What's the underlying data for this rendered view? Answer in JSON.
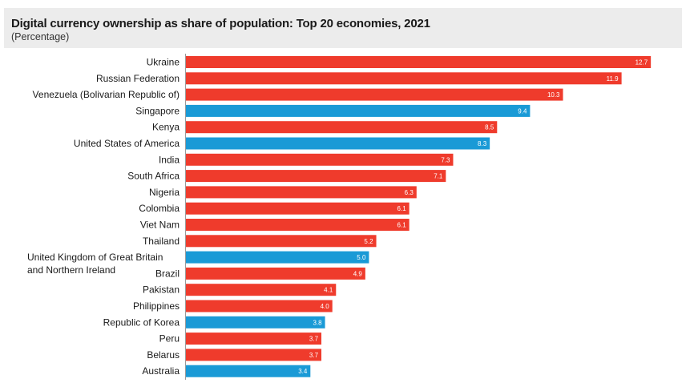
{
  "header": {
    "title": "Digital currency ownership as share of population: Top 20 economies, 2021",
    "subtitle": "(Percentage)"
  },
  "colors": {
    "red": "#ef3b2c",
    "blue": "#1a9ad6",
    "title_band": "#ececec"
  },
  "chart_data": {
    "type": "bar",
    "orientation": "horizontal",
    "title": "Digital currency ownership as share of population: Top 20 economies, 2021",
    "subtitle": "(Percentage)",
    "xlim": [
      0,
      13.2
    ],
    "grid": false,
    "legend": "none",
    "categories": [
      "Ukraine",
      "Russian Federation",
      "Venezuela (Bolivarian Republic of)",
      "Singapore",
      "Kenya",
      "United States of America",
      "India",
      "South Africa",
      "Nigeria",
      "Colombia",
      "Viet Nam",
      "Thailand",
      "United Kingdom of Great Britain and Northern Ireland",
      "Brazil",
      "Pakistan",
      "Philippines",
      "Republic of Korea",
      "Peru",
      "Belarus",
      "Australia"
    ],
    "label_lines": [
      [
        "Ukraine"
      ],
      [
        "Russian Federation"
      ],
      [
        "Venezuela (Bolivarian Republic of)"
      ],
      [
        "Singapore"
      ],
      [
        "Kenya"
      ],
      [
        "United States of America"
      ],
      [
        "India"
      ],
      [
        "South Africa"
      ],
      [
        "Nigeria"
      ],
      [
        "Colombia"
      ],
      [
        "Viet Nam"
      ],
      [
        "Thailand"
      ],
      [
        "United Kingdom of Great Britain",
        "and Northern Ireland"
      ],
      [
        "Brazil"
      ],
      [
        "Pakistan"
      ],
      [
        "Philippines"
      ],
      [
        "Republic of Korea"
      ],
      [
        "Peru"
      ],
      [
        "Belarus"
      ],
      [
        "Australia"
      ]
    ],
    "values": [
      12.7,
      11.9,
      10.3,
      9.4,
      8.5,
      8.3,
      7.3,
      7.1,
      6.3,
      6.1,
      6.1,
      5.2,
      5.0,
      4.9,
      4.1,
      4.0,
      3.8,
      3.7,
      3.7,
      3.4
    ],
    "value_labels": [
      "12.7",
      "11.9",
      "10.3",
      "9.4",
      "8.5",
      "8.3",
      "7.3",
      "7.1",
      "6.3",
      "6.1",
      "6.1",
      "5.2",
      "5.0",
      "4.9",
      "4.1",
      "4.0",
      "3.8",
      "3.7",
      "3.7",
      "3.4"
    ],
    "bar_colors": [
      "red",
      "red",
      "red",
      "blue",
      "red",
      "blue",
      "red",
      "red",
      "red",
      "red",
      "red",
      "red",
      "blue",
      "red",
      "red",
      "red",
      "blue",
      "red",
      "red",
      "blue"
    ]
  }
}
